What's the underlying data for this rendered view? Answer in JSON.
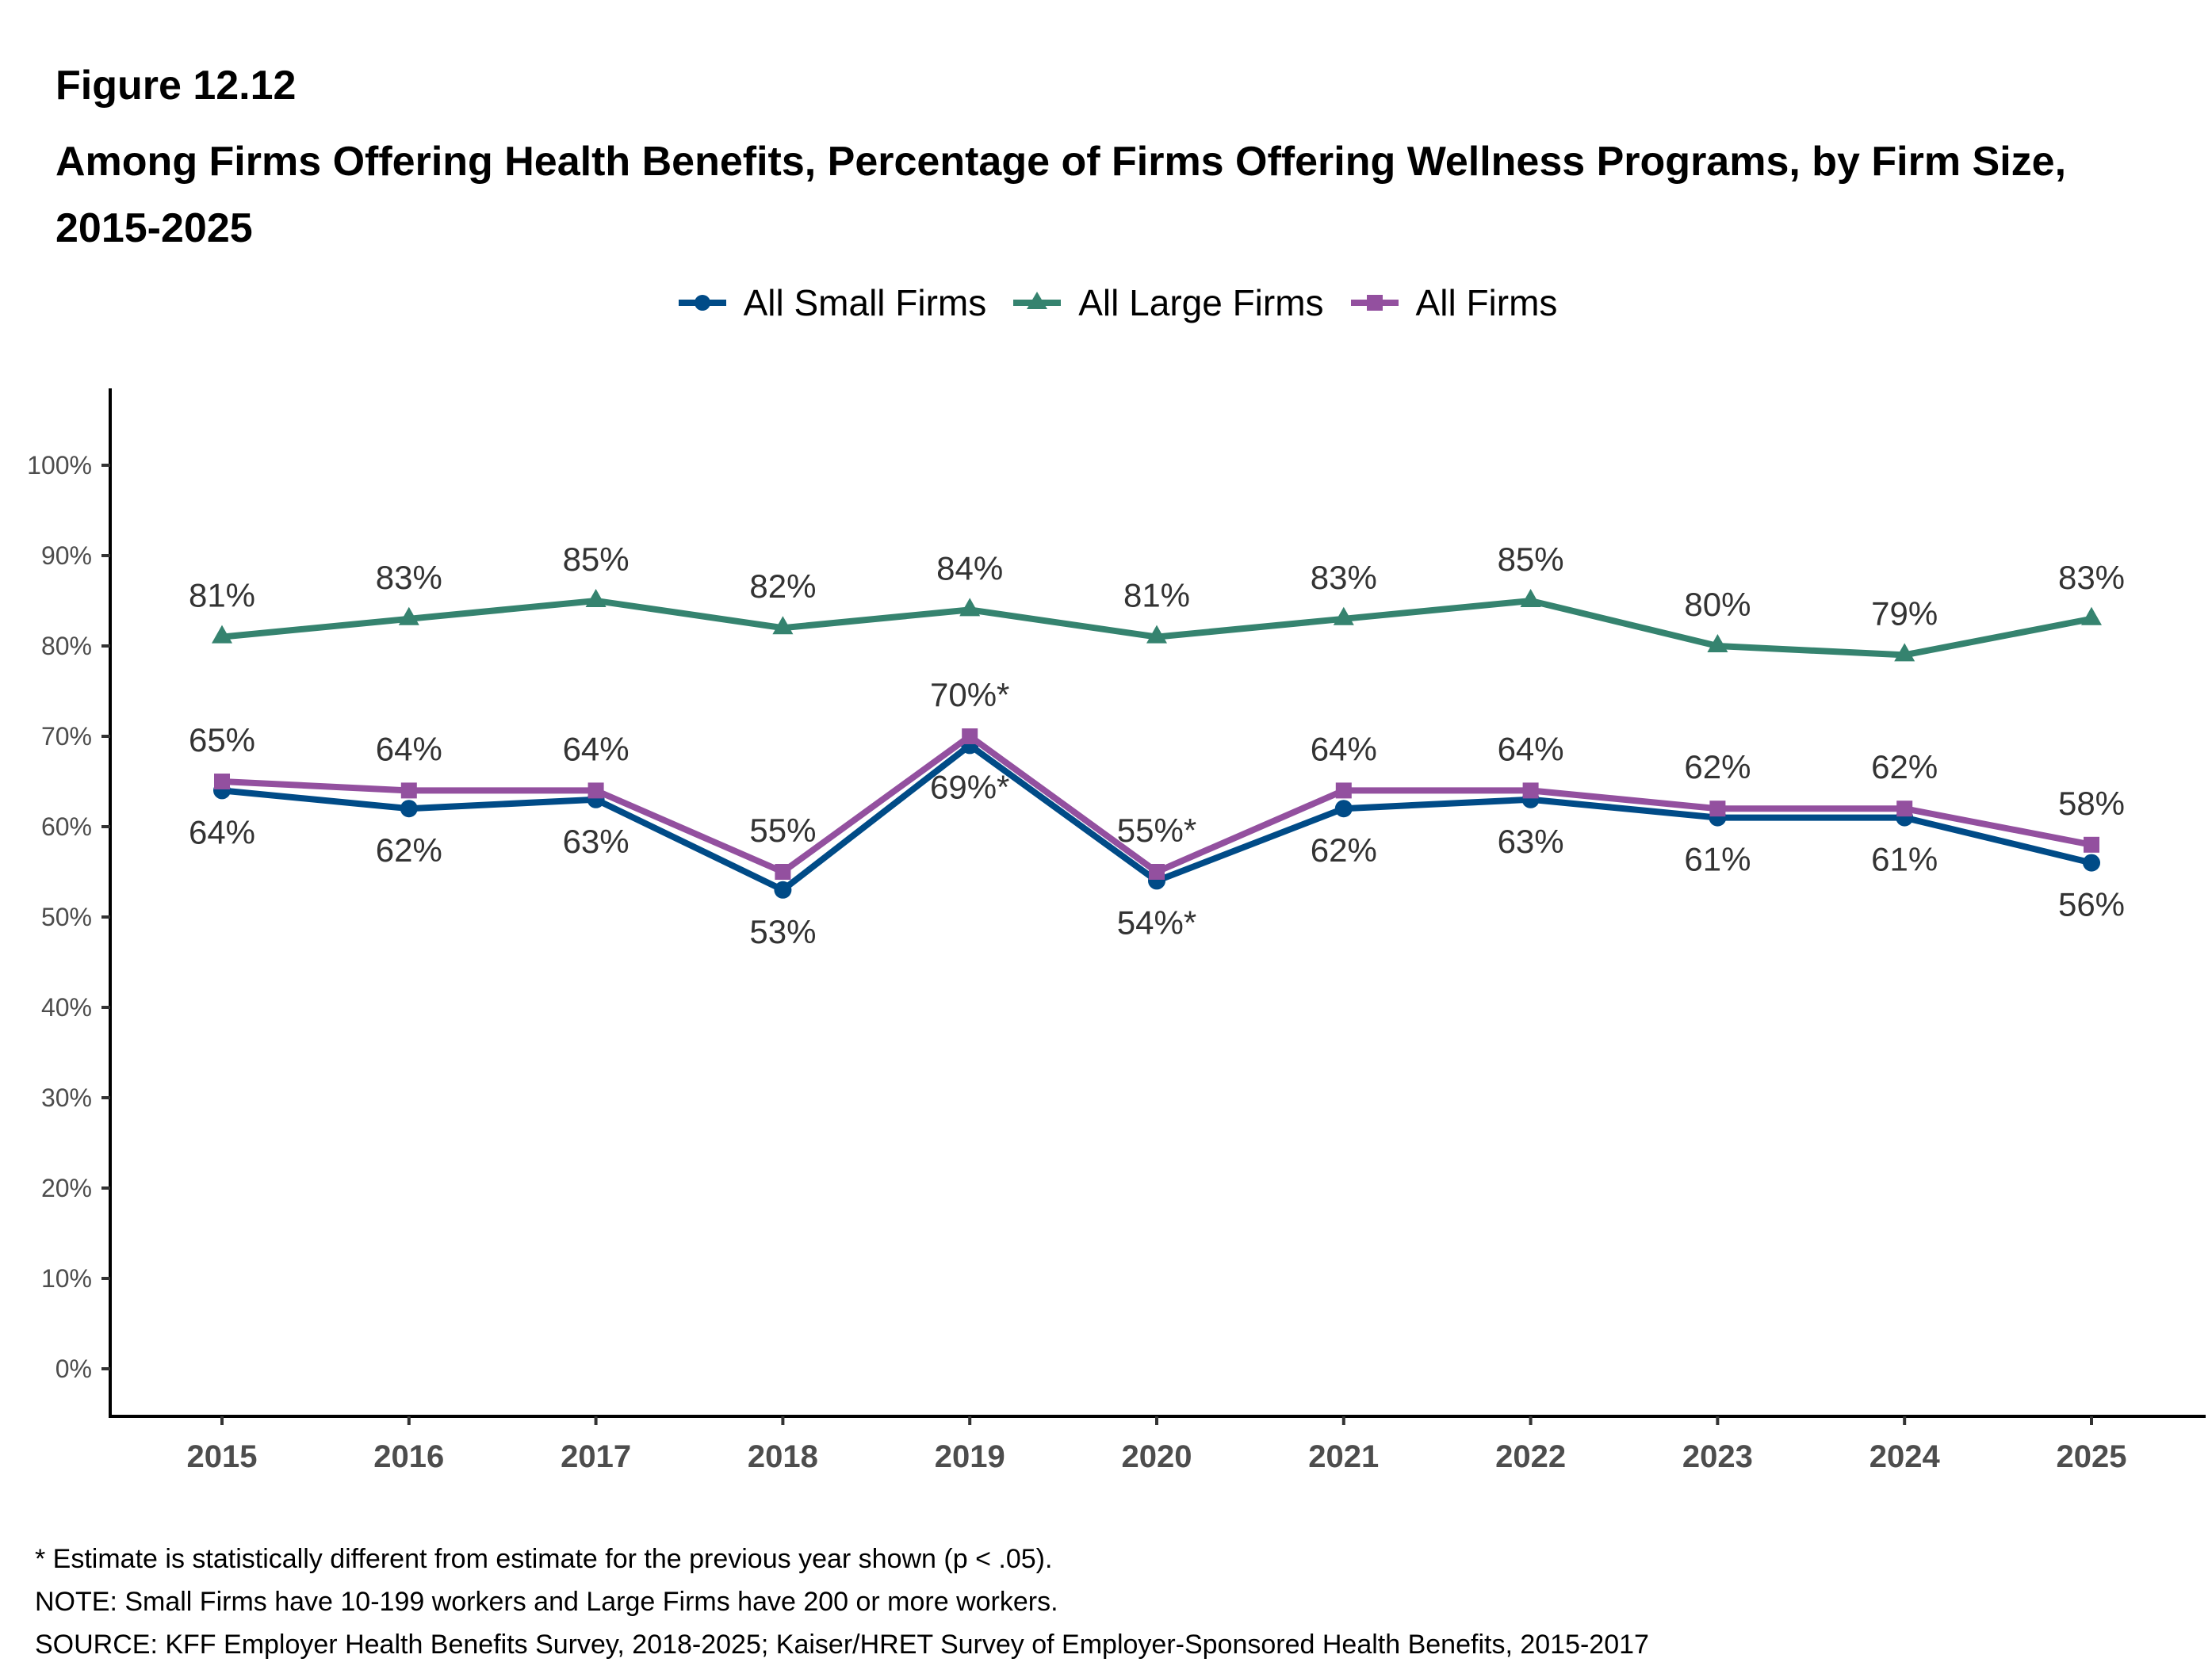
{
  "figure": {
    "label": "Figure 12.12",
    "title": "Among Firms Offering Health Benefits, Percentage of Firms Offering Wellness Programs, by Firm Size, 2015-2025"
  },
  "footnotes": {
    "significance": "* Estimate is statistically different from estimate for the previous year shown (p < .05).",
    "note": "NOTE: Small Firms have 10-199 workers and Large Firms have 200 or more workers.",
    "source": "SOURCE: KFF Employer Health Benefits Survey, 2018-2025; Kaiser/HRET Survey of Employer-Sponsored Health Benefits, 2015-2017"
  },
  "chart_data": {
    "type": "line",
    "title": "Among Firms Offering Health Benefits, Percentage of Firms Offering Wellness Programs, by Firm Size, 2015-2025",
    "xlabel": "",
    "ylabel": "",
    "x": [
      "2015",
      "2016",
      "2017",
      "2018",
      "2019",
      "2020",
      "2021",
      "2022",
      "2023",
      "2024",
      "2025"
    ],
    "ylim": [
      0,
      100
    ],
    "yticks": [
      0,
      10,
      20,
      30,
      40,
      50,
      60,
      70,
      80,
      90,
      100
    ],
    "ytick_labels": [
      "0%",
      "10%",
      "20%",
      "30%",
      "40%",
      "50%",
      "60%",
      "70%",
      "80%",
      "90%",
      "100%"
    ],
    "grid": false,
    "legend_position": "top-center",
    "series": [
      {
        "name": "All Small Firms",
        "color": "#004B87",
        "marker": "circle",
        "label_position": "below",
        "values": [
          64,
          62,
          63,
          53,
          69,
          54,
          62,
          63,
          61,
          61,
          56
        ],
        "labels": [
          "64%",
          "62%",
          "63%",
          "53%",
          "69%*",
          "54%*",
          "62%",
          "63%",
          "61%",
          "61%",
          "56%"
        ]
      },
      {
        "name": "All Large Firms",
        "color": "#35836F",
        "marker": "triangle",
        "label_position": "above",
        "values": [
          81,
          83,
          85,
          82,
          84,
          81,
          83,
          85,
          80,
          79,
          83
        ],
        "labels": [
          "81%",
          "83%",
          "85%",
          "82%",
          "84%",
          "81%",
          "83%",
          "85%",
          "80%",
          "79%",
          "83%"
        ]
      },
      {
        "name": "All Firms",
        "color": "#93509F",
        "marker": "square",
        "label_position": "above",
        "values": [
          65,
          64,
          64,
          55,
          70,
          55,
          64,
          64,
          62,
          62,
          58
        ],
        "labels": [
          "65%",
          "64%",
          "64%",
          "55%",
          "70%*",
          "55%*",
          "64%",
          "64%",
          "62%",
          "62%",
          "58%"
        ]
      }
    ]
  }
}
